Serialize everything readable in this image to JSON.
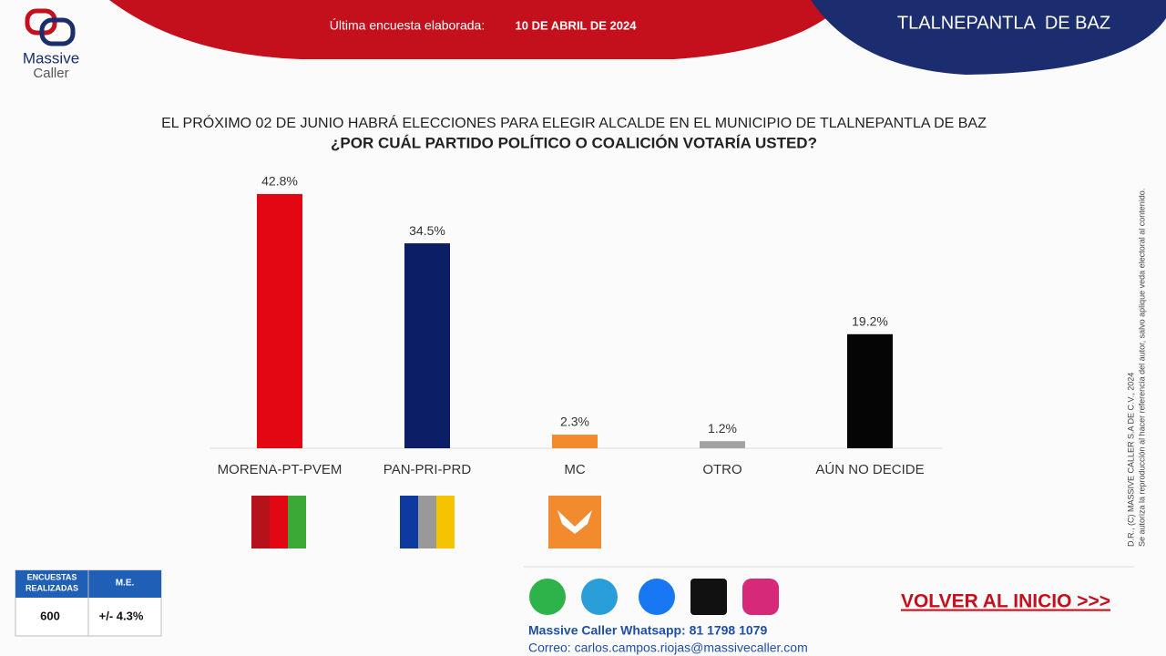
{
  "header": {
    "survey_label": "Última encuesta elaborada:",
    "survey_date": "10 DE ABRIL DE 2024",
    "place": "TLALNEPANTLA  DE BAZ"
  },
  "logo": {
    "line1": "Massive",
    "line2": "Caller"
  },
  "chart_data": {
    "type": "bar",
    "title": "EL PRÓXIMO 02 DE JUNIO HABRÁ ELECCIONES PARA ELEGIR ALCALDE EN EL MUNICIPIO DE TLALNEPANTLA DE BAZ",
    "subtitle": "¿POR CUÁL PARTIDO POLÍTICO O COALICIÓN VOTARÍA USTED?",
    "categories": [
      "MORENA-PT-PVEM",
      "PAN-PRI-PRD",
      "MC",
      "OTRO",
      "AÚN NO DECIDE"
    ],
    "values": [
      42.8,
      34.5,
      2.3,
      1.2,
      19.2
    ],
    "value_labels": [
      "42.8%",
      "34.5%",
      "2.3%",
      "1.2%",
      "19.2%"
    ],
    "colors": [
      "#e30613",
      "#0c1f66",
      "#f28a2e",
      "#a3a3a3",
      "#050505"
    ]
  },
  "copyright": {
    "line1": "D.R., (C) MASSIVE CALLER S.A DE C.V., 2024",
    "line2": "Se autoriza la reproducción al hacer referencia del autor, salvo aplique veda electoral al contenido."
  },
  "stats": {
    "header1": [
      "ENCUESTAS",
      "REALIZADAS"
    ],
    "header2": "M.E.",
    "value1": "600",
    "value2": "+/- 4.3%"
  },
  "footer": {
    "whatsapp": "Massive Caller Whatsapp: 81 1798 1079",
    "email": "Correo: carlos.campos.riojas@massivecaller.com",
    "back": "VOLVER AL INICIO >>>"
  }
}
